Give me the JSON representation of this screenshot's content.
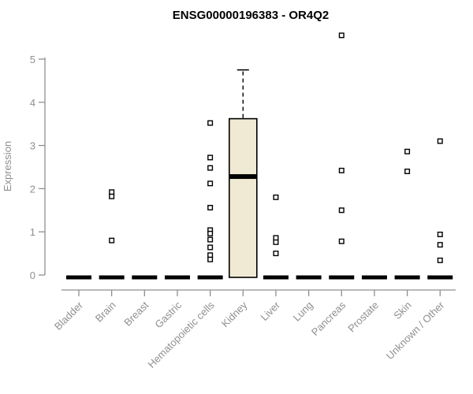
{
  "chart_data": {
    "type": "box",
    "title": "ENSG00000196383 - OR4Q2",
    "ylabel": "Expression",
    "xlabel": "",
    "ylim": [
      0,
      5
    ],
    "yticks": [
      0,
      1,
      2,
      3,
      4,
      5
    ],
    "grid": false,
    "legend": "none",
    "point_marker": "open-square",
    "colors": {
      "box_fill": "#f0e9d3",
      "box_stroke": "#000000",
      "median": "#000000",
      "zero_bar": "#000000",
      "axis": "#8f8f8f",
      "axis_text": "#8f8f8f",
      "title_text": "#000000",
      "point_stroke": "#000000",
      "point_fill": "#ffffff",
      "background": "#ffffff"
    },
    "categories": [
      {
        "label": "Bladder",
        "box": {
          "median": 0
        },
        "points": []
      },
      {
        "label": "Brain",
        "box": {
          "median": 0
        },
        "points": [
          1.92,
          1.82,
          0.8
        ]
      },
      {
        "label": "Breast",
        "box": {
          "median": 0
        },
        "points": []
      },
      {
        "label": "Gastric",
        "box": {
          "median": 0
        },
        "points": []
      },
      {
        "label": "Hematopoietic cells",
        "box": {
          "median": 0
        },
        "points": [
          3.52,
          2.72,
          2.48,
          2.12,
          1.56,
          1.04,
          0.96,
          0.82,
          0.64,
          0.46,
          0.36
        ]
      },
      {
        "label": "Kidney",
        "box": {
          "q1": 0,
          "median": 2.28,
          "q3": 3.62,
          "whisker_high": 4.75
        },
        "points": []
      },
      {
        "label": "Liver",
        "box": {
          "median": 0
        },
        "points": [
          1.8,
          0.86,
          0.76,
          0.5
        ]
      },
      {
        "label": "Lung",
        "box": {
          "median": 0
        },
        "points": []
      },
      {
        "label": "Pancreas",
        "box": {
          "median": 0
        },
        "points": [
          5.55,
          2.42,
          1.5,
          0.78
        ]
      },
      {
        "label": "Prostate",
        "box": {
          "median": 0
        },
        "points": []
      },
      {
        "label": "Skin",
        "box": {
          "median": 0
        },
        "points": [
          2.86,
          2.4
        ]
      },
      {
        "label": "Unknown / Other",
        "box": {
          "median": 0
        },
        "points": [
          3.1,
          0.94,
          0.7,
          0.34
        ]
      }
    ]
  }
}
